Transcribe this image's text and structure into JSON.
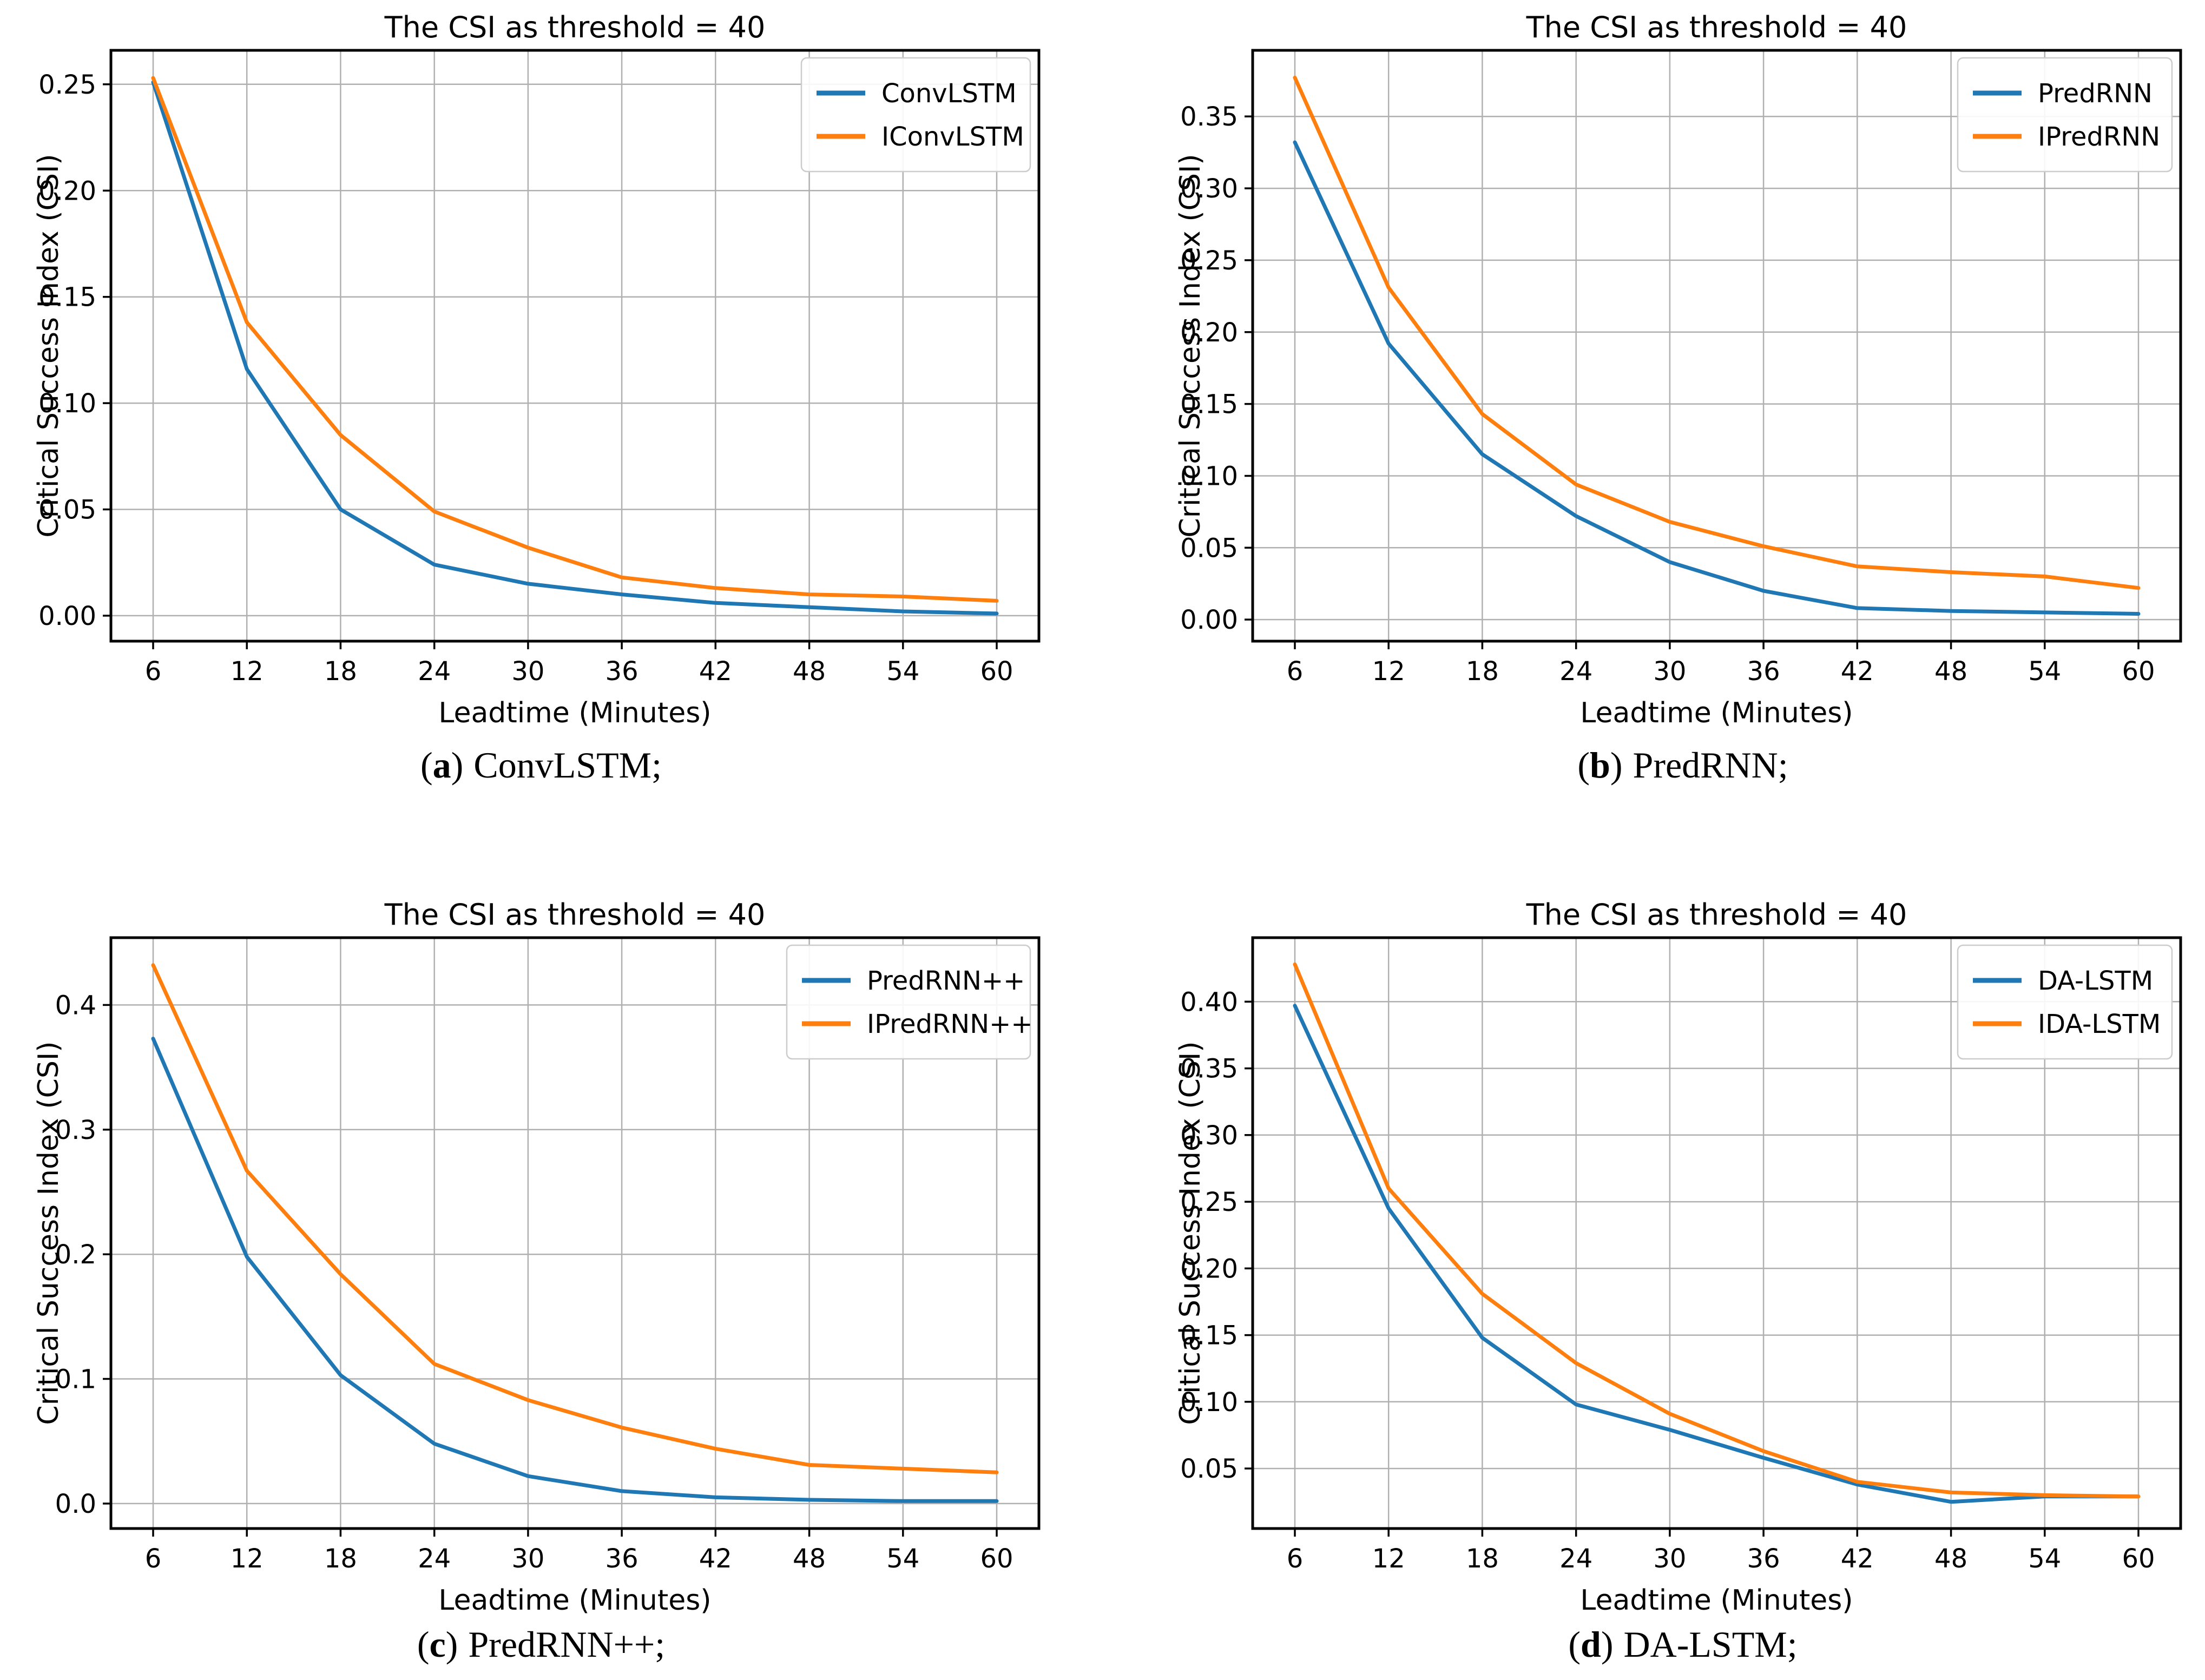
{
  "colors": {
    "blue": "#1f77b4",
    "orange": "#ff7f0e",
    "grid": "#b0b0b0",
    "spine": "#000000",
    "text": "#000000",
    "legend_border": "#cccccc",
    "background": "#ffffff"
  },
  "chart_data": [
    {
      "id": "a",
      "type": "line",
      "title": "The CSI as threshold = 40",
      "xlabel": "Leadtime (Minutes)",
      "ylabel": "Critical Success Index (CSI)",
      "x": [
        6,
        12,
        18,
        24,
        30,
        36,
        42,
        48,
        54,
        60
      ],
      "xticks": [
        6,
        12,
        18,
        24,
        30,
        36,
        42,
        48,
        54,
        60
      ],
      "yticks": [
        0.0,
        0.05,
        0.1,
        0.15,
        0.2,
        0.25
      ],
      "ytick_decimals": 2,
      "xlim": [
        3.3,
        62.7
      ],
      "ylim": [
        -0.012,
        0.266
      ],
      "grid": true,
      "legend_loc": "upper right",
      "series": [
        {
          "name": "ConvLSTM",
          "color": "blue",
          "values": [
            0.251,
            0.116,
            0.05,
            0.024,
            0.015,
            0.01,
            0.006,
            0.004,
            0.002,
            0.001
          ]
        },
        {
          "name": "IConvLSTM",
          "color": "orange",
          "values": [
            0.253,
            0.138,
            0.085,
            0.049,
            0.032,
            0.018,
            0.013,
            0.01,
            0.009,
            0.007
          ]
        }
      ],
      "caption": {
        "open": "(",
        "letter": "a",
        "close": ")",
        "label": "ConvLSTM;"
      }
    },
    {
      "id": "b",
      "type": "line",
      "title": "The CSI as threshold = 40",
      "xlabel": "Leadtime (Minutes)",
      "ylabel": "Critical Success Index (CSI)",
      "x": [
        6,
        12,
        18,
        24,
        30,
        36,
        42,
        48,
        54,
        60
      ],
      "xticks": [
        6,
        12,
        18,
        24,
        30,
        36,
        42,
        48,
        54,
        60
      ],
      "yticks": [
        0.0,
        0.05,
        0.1,
        0.15,
        0.2,
        0.25,
        0.3,
        0.35
      ],
      "ytick_decimals": 2,
      "xlim": [
        3.3,
        62.7
      ],
      "ylim": [
        -0.015,
        0.396
      ],
      "grid": true,
      "legend_loc": "upper right",
      "series": [
        {
          "name": "PredRNN",
          "color": "blue",
          "values": [
            0.332,
            0.192,
            0.115,
            0.072,
            0.04,
            0.02,
            0.008,
            0.006,
            0.005,
            0.004
          ]
        },
        {
          "name": "IPredRNN",
          "color": "orange",
          "values": [
            0.377,
            0.231,
            0.143,
            0.094,
            0.068,
            0.051,
            0.037,
            0.033,
            0.03,
            0.022
          ]
        }
      ],
      "caption": {
        "open": "(",
        "letter": "b",
        "close": ")",
        "label": "PredRNN;"
      }
    },
    {
      "id": "c",
      "type": "line",
      "title": "The CSI as threshold = 40",
      "xlabel": "Leadtime (Minutes)",
      "ylabel": "Critical Success Index (CSI)",
      "x": [
        6,
        12,
        18,
        24,
        30,
        36,
        42,
        48,
        54,
        60
      ],
      "xticks": [
        6,
        12,
        18,
        24,
        30,
        36,
        42,
        48,
        54,
        60
      ],
      "yticks": [
        0.0,
        0.1,
        0.2,
        0.3,
        0.4
      ],
      "ytick_decimals": 1,
      "xlim": [
        3.3,
        62.7
      ],
      "ylim": [
        -0.02,
        0.454
      ],
      "grid": true,
      "legend_loc": "upper right",
      "series": [
        {
          "name": "PredRNN++",
          "color": "blue",
          "values": [
            0.373,
            0.198,
            0.103,
            0.048,
            0.022,
            0.01,
            0.005,
            0.003,
            0.002,
            0.002
          ]
        },
        {
          "name": "IPredRNN++",
          "color": "orange",
          "values": [
            0.432,
            0.267,
            0.184,
            0.112,
            0.083,
            0.061,
            0.044,
            0.031,
            0.028,
            0.025
          ]
        }
      ],
      "caption": {
        "open": "(",
        "letter": "c",
        "close": ")",
        "label": "PredRNN++;"
      }
    },
    {
      "id": "d",
      "type": "line",
      "title": "The CSI as threshold = 40",
      "xlabel": "Leadtime (Minutes)",
      "ylabel": "Critical Success Index (CSI)",
      "x": [
        6,
        12,
        18,
        24,
        30,
        36,
        42,
        48,
        54,
        60
      ],
      "xticks": [
        6,
        12,
        18,
        24,
        30,
        36,
        42,
        48,
        54,
        60
      ],
      "yticks": [
        0.05,
        0.1,
        0.15,
        0.2,
        0.25,
        0.3,
        0.35,
        0.4
      ],
      "ytick_decimals": 2,
      "xlim": [
        3.3,
        62.7
      ],
      "ylim": [
        0.005,
        0.448
      ],
      "grid": true,
      "legend_loc": "upper right",
      "series": [
        {
          "name": "DA-LSTM",
          "color": "blue",
          "values": [
            0.397,
            0.245,
            0.148,
            0.098,
            0.079,
            0.058,
            0.038,
            0.025,
            0.029,
            0.029
          ]
        },
        {
          "name": "IDA-LSTM",
          "color": "orange",
          "values": [
            0.428,
            0.26,
            0.181,
            0.129,
            0.091,
            0.063,
            0.04,
            0.032,
            0.03,
            0.029
          ]
        }
      ],
      "caption": {
        "open": "(",
        "letter": "d",
        "close": ")",
        "label": "DA-LSTM;"
      }
    }
  ]
}
